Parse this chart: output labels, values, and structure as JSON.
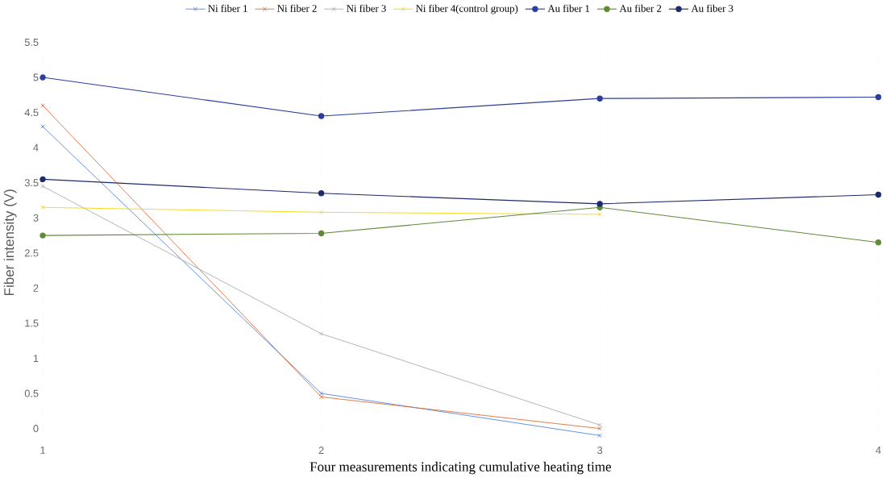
{
  "chart_data": {
    "type": "line",
    "xlabel": "Four measurements indicating cumulative heating time",
    "ylabel": "Fiber intensity  (V)",
    "x": [
      1,
      2,
      3,
      4
    ],
    "xlim": [
      1,
      4
    ],
    "xticks": [
      1,
      2,
      3,
      4
    ],
    "ylim": [
      -0.2,
      5.5
    ],
    "yticks": [
      0,
      0.5,
      1,
      1.5,
      2,
      2.5,
      3,
      3.5,
      4,
      4.5,
      5,
      5.5
    ],
    "grid": "x",
    "legend": "top",
    "series": [
      {
        "name": "Ni fiber 1",
        "color": "#4a7fe0",
        "marker": "cross",
        "values": [
          4.3,
          0.5,
          -0.1,
          null
        ]
      },
      {
        "name": "Ni fiber 2",
        "color": "#e0642a",
        "marker": "cross",
        "values": [
          4.6,
          0.45,
          0.0,
          null
        ]
      },
      {
        "name": "Ni fiber 3",
        "color": "#a8a8a8",
        "marker": "cross",
        "values": [
          3.45,
          1.35,
          0.05,
          null
        ]
      },
      {
        "name": "Ni fiber 4(control group)",
        "color": "#f2d400",
        "marker": "cross",
        "values": [
          3.15,
          3.08,
          3.05,
          null
        ]
      },
      {
        "name": "Au fiber 1",
        "color": "#2b3e9e",
        "marker": "circle",
        "values": [
          5.0,
          4.45,
          4.7,
          4.72
        ]
      },
      {
        "name": "Au fiber 2",
        "color": "#5f8a35",
        "marker": "circle",
        "values": [
          2.75,
          2.78,
          3.15,
          2.65
        ]
      },
      {
        "name": "Au fiber 3",
        "color": "#1c2a6b",
        "marker": "circle",
        "values": [
          3.55,
          3.35,
          3.2,
          3.33
        ]
      }
    ]
  }
}
